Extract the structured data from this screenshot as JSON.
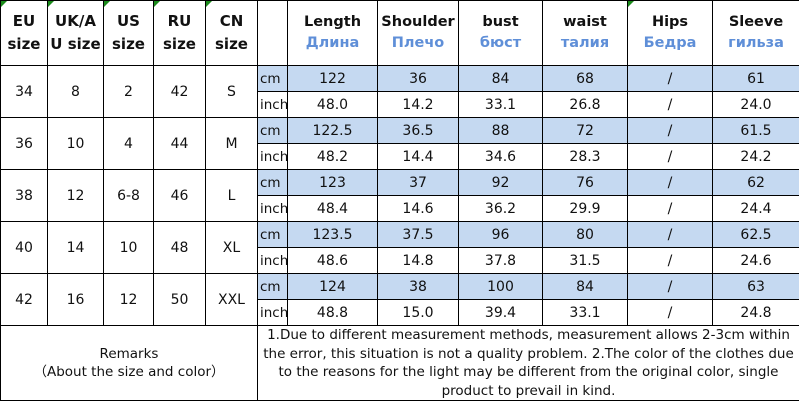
{
  "header": {
    "size_columns": [
      "EU size",
      "UK/AU size",
      "US size",
      "RU size",
      "CN size"
    ],
    "size_columns_display": [
      [
        "EU",
        "size"
      ],
      [
        "UK/A",
        "U size"
      ],
      [
        "US",
        "size"
      ],
      [
        "RU",
        "size"
      ],
      [
        "CN",
        "size"
      ]
    ],
    "measures": [
      {
        "en": "Length",
        "ru": "Длина"
      },
      {
        "en": "Shoulder",
        "ru": "Плечо"
      },
      {
        "en": "bust",
        "ru": "бюст"
      },
      {
        "en": "waist",
        "ru": "талия"
      },
      {
        "en": "Hips",
        "ru": "Бедра"
      },
      {
        "en": "Sleeve",
        "ru": "гильза"
      }
    ]
  },
  "units": {
    "cm": "cm",
    "inch": "inch"
  },
  "rows": [
    {
      "sizes": [
        "34",
        "8",
        "2",
        "42",
        "S"
      ],
      "cm": [
        "122",
        "36",
        "84",
        "68",
        "/",
        "61"
      ],
      "inch": [
        "48.0",
        "14.2",
        "33.1",
        "26.8",
        "/",
        "24.0"
      ]
    },
    {
      "sizes": [
        "36",
        "10",
        "4",
        "44",
        "M"
      ],
      "cm": [
        "122.5",
        "36.5",
        "88",
        "72",
        "/",
        "61.5"
      ],
      "inch": [
        "48.2",
        "14.4",
        "34.6",
        "28.3",
        "/",
        "24.2"
      ]
    },
    {
      "sizes": [
        "38",
        "12",
        "6-8",
        "46",
        "L"
      ],
      "cm": [
        "123",
        "37",
        "92",
        "76",
        "/",
        "62"
      ],
      "inch": [
        "48.4",
        "14.6",
        "36.2",
        "29.9",
        "/",
        "24.4"
      ]
    },
    {
      "sizes": [
        "40",
        "14",
        "10",
        "48",
        "XL"
      ],
      "cm": [
        "123.5",
        "37.5",
        "96",
        "80",
        "/",
        "62.5"
      ],
      "inch": [
        "48.6",
        "14.8",
        "37.8",
        "31.5",
        "/",
        "24.6"
      ]
    },
    {
      "sizes": [
        "42",
        "16",
        "12",
        "50",
        "XXL"
      ],
      "cm": [
        "124",
        "38",
        "100",
        "84",
        "/",
        "63"
      ],
      "inch": [
        "48.8",
        "15.0",
        "39.4",
        "33.1",
        "/",
        "24.8"
      ]
    }
  ],
  "remarks": {
    "title": "Remarks",
    "subtitle": "（About the size and color）",
    "text": "1.Due to different measurement methods, measurement allows 2-3cm within the error, this situation is not a quality problem.     2.The color of the clothes due to the reasons for the light may be different from the original color, single product to prevail in kind."
  },
  "colors": {
    "cm_row_bg": "#c5d9f1",
    "russian_label": "#5f8fd8",
    "corner_marker": "#1a8a1a"
  }
}
